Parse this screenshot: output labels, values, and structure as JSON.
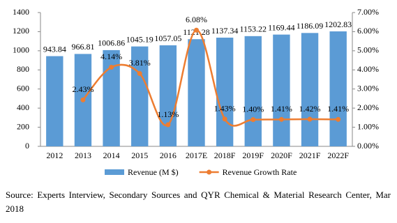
{
  "chart_data": {
    "type": "bar",
    "categories": [
      "2012",
      "2013",
      "2014",
      "2015",
      "2016",
      "2017E",
      "2018F",
      "2019F",
      "2020F",
      "2021F",
      "2022F"
    ],
    "series": [
      {
        "name": "Revenue (M $)",
        "type": "bar",
        "color": "#5b9bd5",
        "values": [
          943.84,
          966.81,
          1006.86,
          1045.19,
          1057.05,
          1121.28,
          1137.34,
          1153.22,
          1169.44,
          1186.09,
          1202.83
        ]
      },
      {
        "name": "Revenue Growth Rate",
        "type": "line",
        "axis": "y2",
        "color": "#ed7d31",
        "values": [
          null,
          2.43,
          4.14,
          3.81,
          1.13,
          6.08,
          1.43,
          1.4,
          1.41,
          1.42,
          1.41
        ],
        "value_labels": [
          null,
          "2.43%",
          "4.14%",
          "3.81%",
          "1.13%",
          "6.08%",
          "1.43%",
          "1.40%",
          "1.41%",
          "1.42%",
          "1.41%"
        ]
      }
    ],
    "ylim": [
      0,
      1400
    ],
    "yticks": [
      0,
      200,
      400,
      600,
      800,
      1000,
      1200,
      1400
    ],
    "y2lim": [
      0,
      7
    ],
    "y2ticks": [
      {
        "value": 0,
        "label": "0.00%"
      },
      {
        "value": 1,
        "label": "1.00%"
      },
      {
        "value": 2,
        "label": "2.00%"
      },
      {
        "value": 3,
        "label": "3.00%"
      },
      {
        "value": 4,
        "label": "4.00%"
      },
      {
        "value": 5,
        "label": "5.00%"
      },
      {
        "value": 6,
        "label": "6.00%"
      },
      {
        "value": 7,
        "label": "7.00%"
      }
    ],
    "grid": false,
    "legend": "bottom",
    "source": "Source: Experts Interview, Secondary Sources and QYR Chemical & Material Research Center, Mar 2018"
  }
}
